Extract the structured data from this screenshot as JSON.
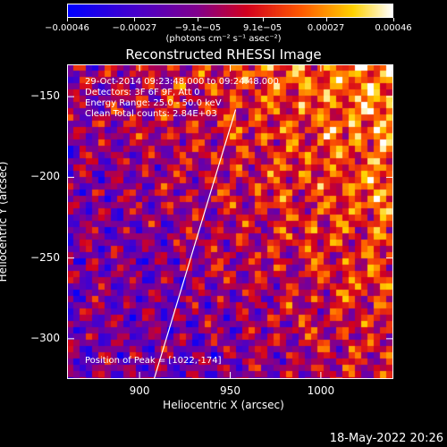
{
  "chart_data": {
    "type": "heatmap",
    "title": "Reconstructed RHESSI Image",
    "xlabel": "Heliocentric X (arcsec)",
    "ylabel": "Heliocentric Y (arcsec)",
    "xlim": [
      860,
      1040
    ],
    "ylim": [
      -325,
      -130
    ],
    "xticks": [
      900,
      950,
      1000
    ],
    "xtick_labels": [
      "900",
      "950",
      "1000"
    ],
    "yticks": [
      -150,
      -200,
      -250,
      -300
    ],
    "ytick_labels": [
      "−150",
      "−200",
      "−250",
      "−300"
    ],
    "colorbar": {
      "range": [
        -0.00046,
        0.00046
      ],
      "ticks": [
        -0.00046,
        -0.00027,
        -9.1e-05,
        9.1e-05,
        0.00027,
        0.00046
      ],
      "tick_labels": [
        "−0.00046",
        "−0.00027",
        "−9.1e−05",
        "9.1e−05",
        "0.00027",
        "0.00046"
      ],
      "units": "(photons cm⁻² s⁻¹ asec⁻²)"
    },
    "limb_line": {
      "x": [
        908,
        953
      ],
      "y": [
        -325,
        -158
      ]
    },
    "annotations": [
      "29-Oct-2014 09:23:48.000 to 09:24:48.000",
      "Detectors: 3F 6F 9F, Att 0",
      "Energy Range: 25.0 - 50.0 keV",
      "Clean    Total counts: 2.84E+03",
      "Position of Peak = [1022,-174]"
    ]
  },
  "footer": {
    "datestamp": "18-May-2022 20:26"
  },
  "colors": {
    "background": "#000000",
    "text": "#ffffff"
  }
}
